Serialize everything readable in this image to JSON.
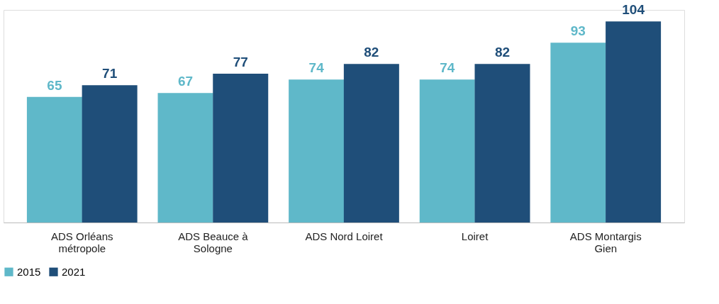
{
  "chart_data": {
    "type": "bar",
    "categories": [
      "ADS Orléans métropole",
      "ADS Beauce à Sologne",
      "ADS Nord Loiret",
      "Loiret",
      "ADS Montargis Gien"
    ],
    "series": [
      {
        "name": "2015",
        "color": "#5fb8c9",
        "values": [
          65,
          67,
          74,
          74,
          93
        ]
      },
      {
        "name": "2021",
        "color": "#1f4e79",
        "values": [
          71,
          77,
          82,
          82,
          104
        ]
      }
    ],
    "data_labels": true,
    "legend": "bottom",
    "grid": false
  }
}
